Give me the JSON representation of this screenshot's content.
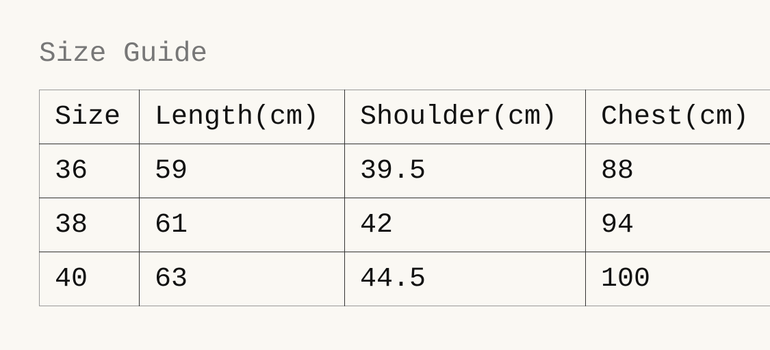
{
  "header": {
    "title": "Size Guide"
  },
  "table": {
    "columns": [
      "Size",
      "Length(cm)",
      "Shoulder(cm)",
      "Chest(cm)"
    ],
    "rows": [
      [
        "36",
        "59",
        "39.5",
        "88"
      ],
      [
        "38",
        "61",
        "42",
        "94"
      ],
      [
        "40",
        "63",
        "44.5",
        "100"
      ]
    ]
  }
}
